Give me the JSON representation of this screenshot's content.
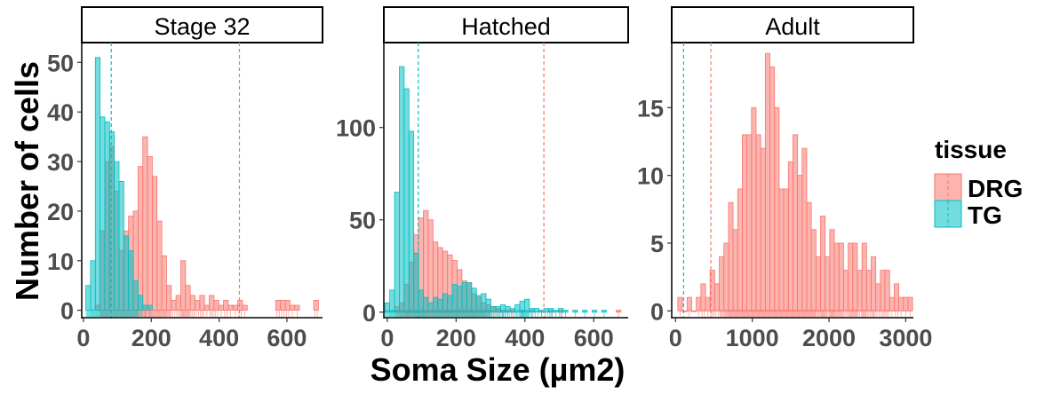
{
  "chart_data": {
    "type": "bar",
    "xlabel": "Soma Size (µm2)",
    "ylabel": "Number of cells",
    "legend": {
      "title": "tissue",
      "position": "right",
      "entries": [
        {
          "name": "DRG",
          "fill": "#F8766D",
          "fill_opacity": 0.55
        },
        {
          "name": "TG",
          "fill": "#00BFC4",
          "fill_opacity": 0.55
        }
      ]
    },
    "grid": false,
    "panels": [
      {
        "title": "Stage 32",
        "xlim": [
          -5,
          705
        ],
        "ylim": [
          -1.5,
          54
        ],
        "xticks": [
          0,
          200,
          400,
          600
        ],
        "yticks": [
          0,
          10,
          20,
          30,
          40,
          50
        ],
        "bin_width": 14,
        "series": [
          {
            "name": "DRG",
            "bins": [
              [
                42,
                1
              ],
              [
                56,
                16
              ],
              [
                70,
                30
              ],
              [
                84,
                33
              ],
              [
                98,
                24
              ],
              [
                112,
                12
              ],
              [
                126,
                16
              ],
              [
                140,
                19
              ],
              [
                154,
                20
              ],
              [
                168,
                29
              ],
              [
                182,
                35
              ],
              [
                196,
                31
              ],
              [
                210,
                27
              ],
              [
                224,
                18
              ],
              [
                238,
                11
              ],
              [
                252,
                5
              ],
              [
                266,
                2
              ],
              [
                280,
                3
              ],
              [
                294,
                10
              ],
              [
                308,
                5
              ],
              [
                322,
                3
              ],
              [
                336,
                2
              ],
              [
                350,
                3
              ],
              [
                364,
                1
              ],
              [
                378,
                3
              ],
              [
                392,
                2
              ],
              [
                406,
                1
              ],
              [
                420,
                2
              ],
              [
                434,
                1
              ],
              [
                448,
                1
              ],
              [
                462,
                2
              ],
              [
                476,
                1
              ],
              [
                574,
                2
              ],
              [
                588,
                2
              ],
              [
                602,
                2
              ],
              [
                616,
                1
              ],
              [
                630,
                1
              ],
              [
                686,
                2
              ]
            ],
            "mean": 460
          },
          {
            "name": "TG",
            "bins": [
              [
                14,
                5
              ],
              [
                28,
                10
              ],
              [
                42,
                51
              ],
              [
                56,
                39
              ],
              [
                70,
                38
              ],
              [
                84,
                36
              ],
              [
                98,
                30
              ],
              [
                112,
                26
              ],
              [
                126,
                15
              ],
              [
                140,
                12
              ],
              [
                154,
                6
              ],
              [
                168,
                3
              ],
              [
                182,
                1
              ],
              [
                196,
                1
              ]
            ],
            "mean": 82
          }
        ]
      },
      {
        "title": "Hatched",
        "xlim": [
          -10,
          700
        ],
        "ylim": [
          -3,
          146
        ],
        "xticks": [
          0,
          200,
          400,
          600
        ],
        "yticks": [
          0,
          50,
          100
        ],
        "bin_width": 14,
        "series": [
          {
            "name": "DRG",
            "bins": [
              [
                28,
                3
              ],
              [
                42,
                5
              ],
              [
                56,
                15
              ],
              [
                70,
                27
              ],
              [
                84,
                42
              ],
              [
                98,
                51
              ],
              [
                112,
                55
              ],
              [
                126,
                50
              ],
              [
                140,
                38
              ],
              [
                154,
                35
              ],
              [
                168,
                33
              ],
              [
                182,
                31
              ],
              [
                196,
                28
              ],
              [
                210,
                23
              ],
              [
                224,
                17
              ],
              [
                238,
                16
              ],
              [
                252,
                10
              ],
              [
                266,
                8
              ],
              [
                280,
                5
              ],
              [
                294,
                4
              ],
              [
                308,
                3
              ],
              [
                322,
                2
              ],
              [
                336,
                1
              ],
              [
                350,
                1
              ],
              [
                364,
                1
              ],
              [
                392,
                1
              ],
              [
                420,
                1
              ],
              [
                448,
                1
              ],
              [
                476,
                1
              ],
              [
                504,
                1
              ],
              [
                672,
                1
              ]
            ],
            "mean": 455
          },
          {
            "name": "TG",
            "bins": [
              [
                0,
                5
              ],
              [
                14,
                12
              ],
              [
                28,
                65
              ],
              [
                42,
                133
              ],
              [
                56,
                121
              ],
              [
                70,
                98
              ],
              [
                84,
                32
              ],
              [
                98,
                12
              ],
              [
                112,
                8
              ],
              [
                126,
                5
              ],
              [
                140,
                8
              ],
              [
                154,
                7
              ],
              [
                168,
                10
              ],
              [
                182,
                9
              ],
              [
                196,
                15
              ],
              [
                210,
                14
              ],
              [
                224,
                16
              ],
              [
                238,
                16
              ],
              [
                252,
                13
              ],
              [
                266,
                9
              ],
              [
                280,
                10
              ],
              [
                294,
                7
              ],
              [
                308,
                3
              ],
              [
                322,
                3
              ],
              [
                336,
                4
              ],
              [
                350,
                3
              ],
              [
                364,
                2
              ],
              [
                378,
                4
              ],
              [
                392,
                6
              ],
              [
                406,
                7
              ],
              [
                420,
                2
              ],
              [
                434,
                2
              ],
              [
                448,
                1
              ],
              [
                462,
                2
              ],
              [
                476,
                2
              ],
              [
                490,
                1
              ],
              [
                504,
                2
              ],
              [
                518,
                1
              ],
              [
                546,
                1
              ],
              [
                574,
                1
              ],
              [
                602,
                1
              ],
              [
                630,
                1
              ]
            ],
            "mean": 90
          }
        ]
      },
      {
        "title": "Adult",
        "xlim": [
          -50,
          3100
        ],
        "ylim": [
          -0.5,
          19.8
        ],
        "xticks": [
          0,
          1000,
          2000,
          3000
        ],
        "yticks": [
          0,
          5,
          10,
          15
        ],
        "bin_width": 60,
        "series": [
          {
            "name": "DRG",
            "bins": [
              [
                60,
                1
              ],
              [
                120,
                0
              ],
              [
                180,
                1
              ],
              [
                240,
                0
              ],
              [
                300,
                1
              ],
              [
                360,
                2
              ],
              [
                420,
                1
              ],
              [
                480,
                3
              ],
              [
                540,
                2
              ],
              [
                600,
                4
              ],
              [
                660,
                5
              ],
              [
                720,
                8
              ],
              [
                780,
                6
              ],
              [
                840,
                9
              ],
              [
                900,
                13
              ],
              [
                960,
                13
              ],
              [
                1020,
                15
              ],
              [
                1080,
                13
              ],
              [
                1140,
                12
              ],
              [
                1200,
                19
              ],
              [
                1260,
                18
              ],
              [
                1320,
                15
              ],
              [
                1380,
                9
              ],
              [
                1440,
                9
              ],
              [
                1500,
                11
              ],
              [
                1560,
                13
              ],
              [
                1620,
                10
              ],
              [
                1680,
                12
              ],
              [
                1740,
                8
              ],
              [
                1800,
                6
              ],
              [
                1860,
                4
              ],
              [
                1920,
                7
              ],
              [
                1980,
                4
              ],
              [
                2040,
                6
              ],
              [
                2100,
                5
              ],
              [
                2160,
                5
              ],
              [
                2220,
                3
              ],
              [
                2280,
                5
              ],
              [
                2340,
                5
              ],
              [
                2400,
                3
              ],
              [
                2460,
                5
              ],
              [
                2520,
                3
              ],
              [
                2580,
                4
              ],
              [
                2640,
                2
              ],
              [
                2700,
                3
              ],
              [
                2760,
                3
              ],
              [
                2820,
                1
              ],
              [
                2880,
                2
              ],
              [
                2940,
                1
              ],
              [
                3000,
                1
              ],
              [
                3060,
                1
              ]
            ],
            "mean": 460
          },
          {
            "name": "TG",
            "bins": [],
            "mean": 105
          }
        ]
      }
    ]
  }
}
